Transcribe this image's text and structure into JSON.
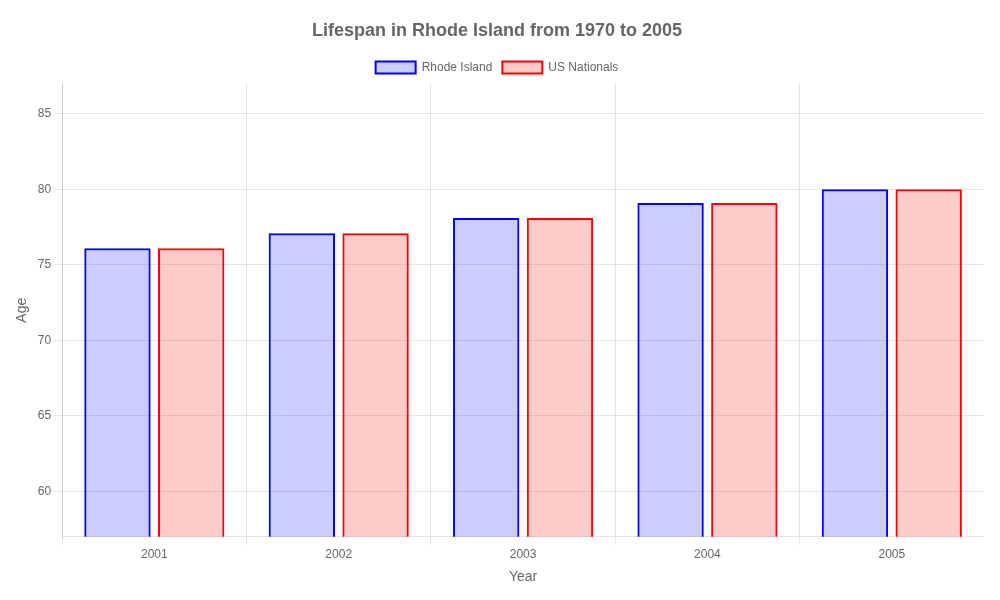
{
  "chart_data": {
    "type": "bar",
    "title": "Lifespan in Rhode Island from 1970 to 2005",
    "xlabel": "Year",
    "ylabel": "Age",
    "categories": [
      "2001",
      "2002",
      "2003",
      "2004",
      "2005"
    ],
    "series": [
      {
        "name": "Rhode Island",
        "color": "#0000ff",
        "values": [
          76.1,
          77.1,
          78.1,
          79.1,
          80.0
        ]
      },
      {
        "name": "US Nationals",
        "color": "#ff0000",
        "values": [
          76.1,
          77.1,
          78.1,
          79.1,
          80.0
        ]
      }
    ],
    "ylim": [
      57,
      87
    ],
    "yticks": [
      60,
      65,
      70,
      75,
      80,
      85
    ],
    "grid": true,
    "legend": "top"
  }
}
